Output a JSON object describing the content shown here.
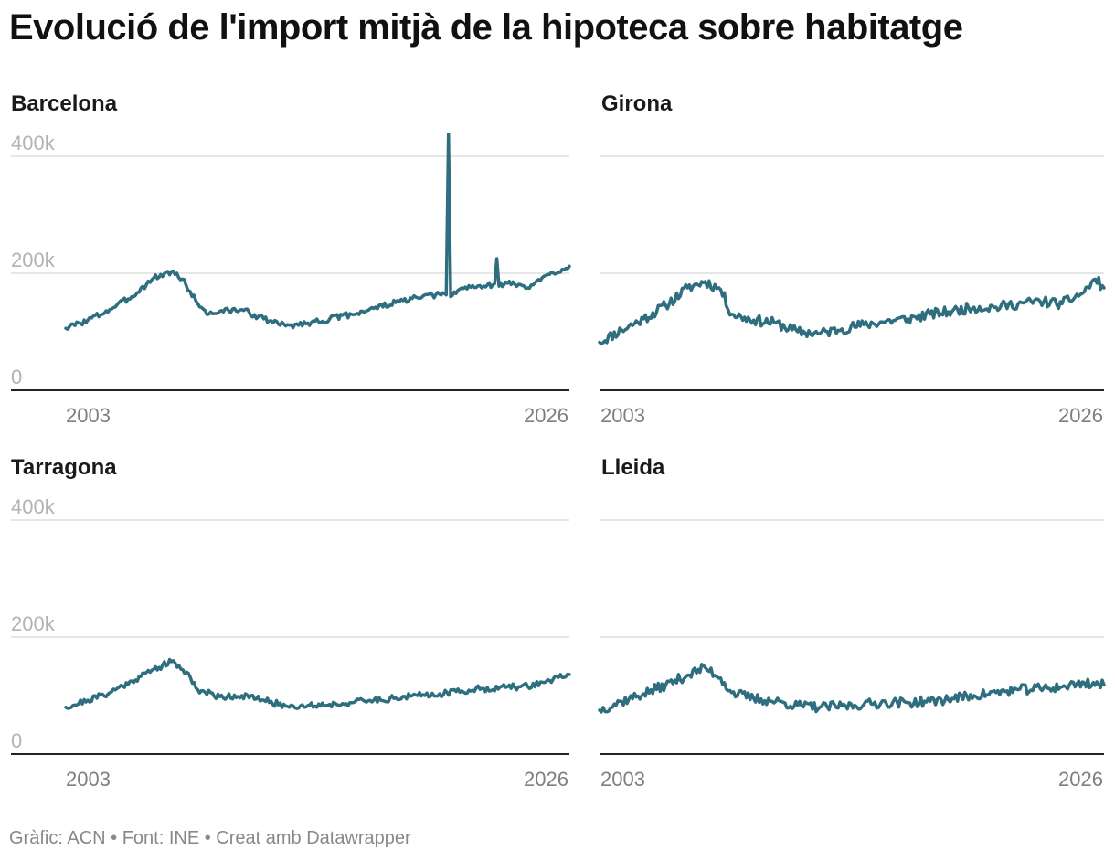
{
  "title": "Evolució de l'import mitjà de la hipoteca sobre habitatge",
  "footer": "Gràfic: ACN • Font: INE • Creat amb Datawrapper",
  "colors": {
    "line": "#2e6e7e",
    "grid": "#dddddd",
    "axis": "#222222"
  },
  "chart_data": [
    {
      "type": "line",
      "title": "Barcelona",
      "x_tick_labels": [
        "2003",
        "2026"
      ],
      "y_tick_labels": [
        "0",
        "200k",
        "400k"
      ],
      "y_ticks": [
        0,
        200000,
        400000
      ],
      "xlim": [
        2003.0,
        2025.9
      ],
      "ylim": [
        0,
        400000
      ],
      "series": [
        {
          "key_points": [
            [
              2003.0,
              106000
            ],
            [
              2004.0,
              120000
            ],
            [
              2005.0,
              138000
            ],
            [
              2006.0,
              160000
            ],
            [
              2007.0,
              192000
            ],
            [
              2007.8,
              203000
            ],
            [
              2008.3,
              190000
            ],
            [
              2009.0,
              148000
            ],
            [
              2009.5,
              130000
            ],
            [
              2010.0,
              135000
            ],
            [
              2011.0,
              138000
            ],
            [
              2012.0,
              122000
            ],
            [
              2013.0,
              110000
            ],
            [
              2014.0,
              115000
            ],
            [
              2015.0,
              122000
            ],
            [
              2016.0,
              130000
            ],
            [
              2017.0,
              140000
            ],
            [
              2018.0,
              150000
            ],
            [
              2019.0,
              158000
            ],
            [
              2020.0,
              164000
            ],
            [
              2020.3,
              163000
            ],
            [
              2020.4,
              438000
            ],
            [
              2020.5,
              160000
            ],
            [
              2021.0,
              175000
            ],
            [
              2022.0,
              178000
            ],
            [
              2022.5,
              182000
            ],
            [
              2022.6,
              225000
            ],
            [
              2022.7,
              178000
            ],
            [
              2023.0,
              185000
            ],
            [
              2024.0,
              175000
            ],
            [
              2025.0,
              198000
            ],
            [
              2025.9,
              212000
            ]
          ],
          "noise": 5000,
          "seed": 3
        }
      ]
    },
    {
      "type": "line",
      "title": "Girona",
      "x_tick_labels": [
        "2003",
        "2026"
      ],
      "y_tick_labels": [],
      "y_ticks": [
        0,
        200000,
        400000
      ],
      "xlim": [
        2003.0,
        2025.9
      ],
      "ylim": [
        0,
        400000
      ],
      "series": [
        {
          "key_points": [
            [
              2003.0,
              82000
            ],
            [
              2004.0,
              103000
            ],
            [
              2005.0,
              122000
            ],
            [
              2006.0,
              145000
            ],
            [
              2007.0,
              175000
            ],
            [
              2007.8,
              186000
            ],
            [
              2008.5,
              172000
            ],
            [
              2009.0,
              130000
            ],
            [
              2010.0,
              120000
            ],
            [
              2011.0,
              115000
            ],
            [
              2012.0,
              100000
            ],
            [
              2013.0,
              97000
            ],
            [
              2014.0,
              105000
            ],
            [
              2015.0,
              112000
            ],
            [
              2016.0,
              118000
            ],
            [
              2017.0,
              122000
            ],
            [
              2018.0,
              130000
            ],
            [
              2019.0,
              135000
            ],
            [
              2020.0,
              142000
            ],
            [
              2021.0,
              142000
            ],
            [
              2022.0,
              148000
            ],
            [
              2023.0,
              152000
            ],
            [
              2024.0,
              148000
            ],
            [
              2025.0,
              168000
            ],
            [
              2025.5,
              190000
            ],
            [
              2025.9,
              175000
            ]
          ],
          "noise": 9000,
          "seed": 11
        }
      ]
    },
    {
      "type": "line",
      "title": "Tarragona",
      "x_tick_labels": [
        "2003",
        "2026"
      ],
      "y_tick_labels": [
        "0",
        "200k",
        "400k"
      ],
      "y_ticks": [
        0,
        200000,
        400000
      ],
      "xlim": [
        2003.0,
        2025.9
      ],
      "ylim": [
        0,
        400000
      ],
      "series": [
        {
          "key_points": [
            [
              2003.0,
              80000
            ],
            [
              2004.0,
              92000
            ],
            [
              2005.0,
              105000
            ],
            [
              2006.0,
              125000
            ],
            [
              2007.0,
              145000
            ],
            [
              2007.8,
              158000
            ],
            [
              2008.5,
              140000
            ],
            [
              2009.0,
              110000
            ],
            [
              2010.0,
              98000
            ],
            [
              2011.0,
              100000
            ],
            [
              2012.0,
              92000
            ],
            [
              2013.0,
              82000
            ],
            [
              2014.0,
              83000
            ],
            [
              2015.0,
              85000
            ],
            [
              2016.0,
              88000
            ],
            [
              2017.0,
              92000
            ],
            [
              2018.0,
              96000
            ],
            [
              2019.0,
              100000
            ],
            [
              2020.0,
              103000
            ],
            [
              2021.0,
              108000
            ],
            [
              2022.0,
              112000
            ],
            [
              2023.0,
              114000
            ],
            [
              2024.0,
              116000
            ],
            [
              2025.0,
              126000
            ],
            [
              2025.9,
              136000
            ]
          ],
          "noise": 5500,
          "seed": 21
        }
      ]
    },
    {
      "type": "line",
      "title": "Lleida",
      "x_tick_labels": [
        "2003",
        "2026"
      ],
      "y_tick_labels": [],
      "y_ticks": [
        0,
        200000,
        400000
      ],
      "xlim": [
        2003.0,
        2025.9
      ],
      "ylim": [
        0,
        400000
      ],
      "series": [
        {
          "key_points": [
            [
              2003.0,
              75000
            ],
            [
              2004.0,
              90000
            ],
            [
              2005.0,
              103000
            ],
            [
              2006.0,
              118000
            ],
            [
              2007.0,
              135000
            ],
            [
              2007.8,
              148000
            ],
            [
              2008.5,
              130000
            ],
            [
              2009.0,
              105000
            ],
            [
              2010.0,
              95000
            ],
            [
              2011.0,
              90000
            ],
            [
              2012.0,
              83000
            ],
            [
              2013.0,
              80000
            ],
            [
              2014.0,
              82000
            ],
            [
              2015.0,
              85000
            ],
            [
              2016.0,
              88000
            ],
            [
              2017.0,
              88000
            ],
            [
              2018.0,
              90000
            ],
            [
              2019.0,
              95000
            ],
            [
              2020.0,
              100000
            ],
            [
              2021.0,
              105000
            ],
            [
              2022.0,
              110000
            ],
            [
              2023.0,
              112000
            ],
            [
              2024.0,
              115000
            ],
            [
              2025.0,
              122000
            ],
            [
              2025.9,
              118000
            ]
          ],
          "noise": 8500,
          "seed": 37
        }
      ]
    }
  ]
}
